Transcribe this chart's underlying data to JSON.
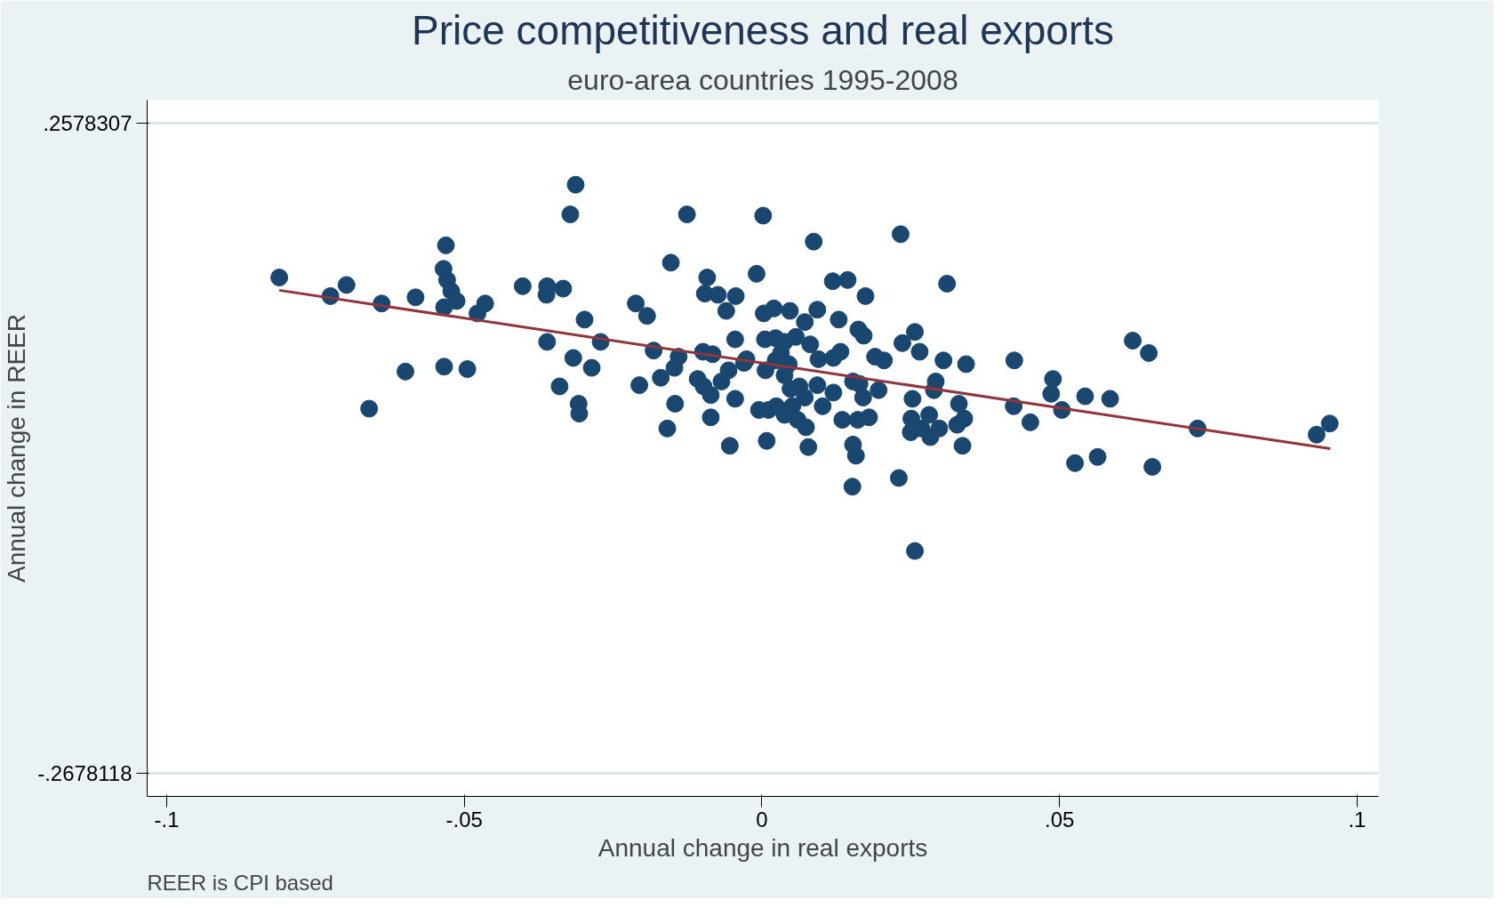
{
  "chart_data": {
    "type": "scatter",
    "title": "Price competitiveness and real exports",
    "subtitle": "euro-area countries 1995-2008",
    "xlabel": "Annual change in real exports",
    "ylabel": "Annual change in REER",
    "annotations": [
      "REER is CPI based"
    ],
    "xlim": [
      -0.1033,
      0.1036
    ],
    "ylim": [
      -0.2863,
      0.2764
    ],
    "xticks": [
      {
        "value": -0.1,
        "label": "-.1"
      },
      {
        "value": -0.05,
        "label": "-.05"
      },
      0,
      {
        "value": 0.05,
        "label": ".05"
      },
      {
        "value": 0.1,
        "label": ".1"
      }
    ],
    "yticks": [
      {
        "value": -0.2678118,
        "label": "-.2678118"
      },
      {
        "value": 0.2578307,
        "label": ".2578307"
      }
    ],
    "grid": "y",
    "series": [
      {
        "type": "scatter",
        "marker": "circle",
        "color": "#1a476f",
        "x": [
          -0.0811,
          -0.0725,
          -0.0698,
          -0.0639,
          -0.066,
          -0.0599,
          -0.0582,
          -0.0531,
          -0.0535,
          -0.0529,
          -0.0522,
          -0.0513,
          -0.0534,
          -0.0534,
          -0.0495,
          -0.0478,
          -0.0465,
          -0.0402,
          -0.0361,
          -0.0362,
          -0.0334,
          -0.0361,
          -0.034,
          -0.0317,
          -0.0308,
          -0.0307,
          -0.0286,
          -0.0298,
          -0.0271,
          -0.0313,
          -0.0322,
          -0.0212,
          -0.0193,
          -0.0182,
          -0.0206,
          -0.017,
          -0.0159,
          -0.0146,
          -0.0147,
          -0.014,
          -0.0153,
          -0.0126,
          -0.0092,
          -0.0096,
          -0.0074,
          -0.0044,
          -0.006,
          -0.0099,
          -0.0083,
          -0.0108,
          -0.0098,
          -0.0086,
          -0.0086,
          -0.0068,
          -0.0056,
          -0.0045,
          -0.0045,
          -0.0054,
          -0.003,
          -0.0026,
          -0.0009,
          0.0002,
          0.0003,
          0.002,
          0.0047,
          0.0005,
          0.0023,
          0.0038,
          0.0057,
          0.0072,
          0.0093,
          0.0081,
          0.0087,
          0.0119,
          0.0144,
          0.0174,
          0.0129,
          0.0162,
          0.0171,
          0.0095,
          0.012,
          0.0132,
          0.0006,
          0.0023,
          0.0045,
          -0.0005,
          0.0011,
          0.0008,
          0.0024,
          0.0048,
          0.0051,
          0.0063,
          0.0072,
          0.0074,
          0.0078,
          0.0093,
          0.0102,
          0.012,
          0.0135,
          0.0153,
          0.0153,
          0.0158,
          0.0161,
          0.017,
          0.018,
          0.0164,
          0.0196,
          0.019,
          0.0205,
          0.0152,
          0.0233,
          0.0236,
          0.0257,
          0.0265,
          0.0253,
          0.0251,
          0.025,
          0.0268,
          0.0281,
          0.0283,
          0.0298,
          0.0292,
          0.0289,
          0.0305,
          0.0311,
          0.0331,
          0.0343,
          0.034,
          0.0328,
          0.0337,
          0.023,
          0.0257,
          0.0424,
          0.0423,
          0.0451,
          0.0489,
          0.0486,
          0.0504,
          0.0543,
          0.0585,
          0.0526,
          0.0564,
          0.0623,
          0.065,
          0.0656,
          0.0732,
          0.0932,
          0.0954,
          0.0032,
          0.0038,
          0.006,
          0.0038
        ],
        "values": [
          0.133,
          0.118,
          0.127,
          0.112,
          0.027,
          0.057,
          0.117,
          0.159,
          0.14,
          0.131,
          0.122,
          0.114,
          0.109,
          0.061,
          0.059,
          0.104,
          0.112,
          0.126,
          0.126,
          0.119,
          0.124,
          0.081,
          0.045,
          0.068,
          0.031,
          0.023,
          0.06,
          0.099,
          0.081,
          0.208,
          0.184,
          0.112,
          0.102,
          0.074,
          0.046,
          0.052,
          0.011,
          0.031,
          0.06,
          0.069,
          0.145,
          0.184,
          0.133,
          0.12,
          0.119,
          0.118,
          0.106,
          0.073,
          0.071,
          0.051,
          0.045,
          0.038,
          0.02,
          0.049,
          0.058,
          0.083,
          0.035,
          -0.003,
          0.064,
          0.067,
          0.136,
          0.183,
          0.104,
          0.108,
          0.106,
          0.083,
          0.084,
          0.081,
          0.085,
          0.097,
          0.107,
          0.079,
          0.162,
          0.13,
          0.131,
          0.118,
          0.099,
          0.091,
          0.086,
          0.067,
          0.068,
          0.073,
          0.058,
          0.066,
          0.063,
          0.026,
          0.026,
          0.001,
          0.029,
          0.043,
          0.029,
          0.045,
          0.036,
          0.012,
          -0.004,
          0.046,
          0.029,
          0.04,
          0.018,
          0.049,
          -0.002,
          -0.011,
          0.018,
          0.036,
          0.02,
          0.047,
          0.042,
          0.069,
          0.066,
          -0.036,
          0.168,
          0.08,
          0.089,
          0.073,
          0.035,
          0.019,
          0.008,
          0.011,
          0.022,
          0.004,
          0.011,
          0.049,
          0.042,
          0.066,
          0.128,
          0.031,
          0.063,
          0.019,
          0.014,
          -0.003,
          -0.029,
          -0.088,
          0.066,
          0.029,
          0.016,
          0.051,
          0.039,
          0.026,
          0.037,
          0.035,
          -0.017,
          -0.012,
          0.082,
          0.072,
          -0.02,
          0.011,
          0.006,
          0.015,
          0.072,
          0.054,
          0.018,
          0.022
        ]
      },
      {
        "type": "line",
        "color": "#90353b",
        "x": [
          -0.0811,
          0.0955
        ],
        "values": [
          0.1227,
          -0.0053
        ]
      }
    ]
  }
}
